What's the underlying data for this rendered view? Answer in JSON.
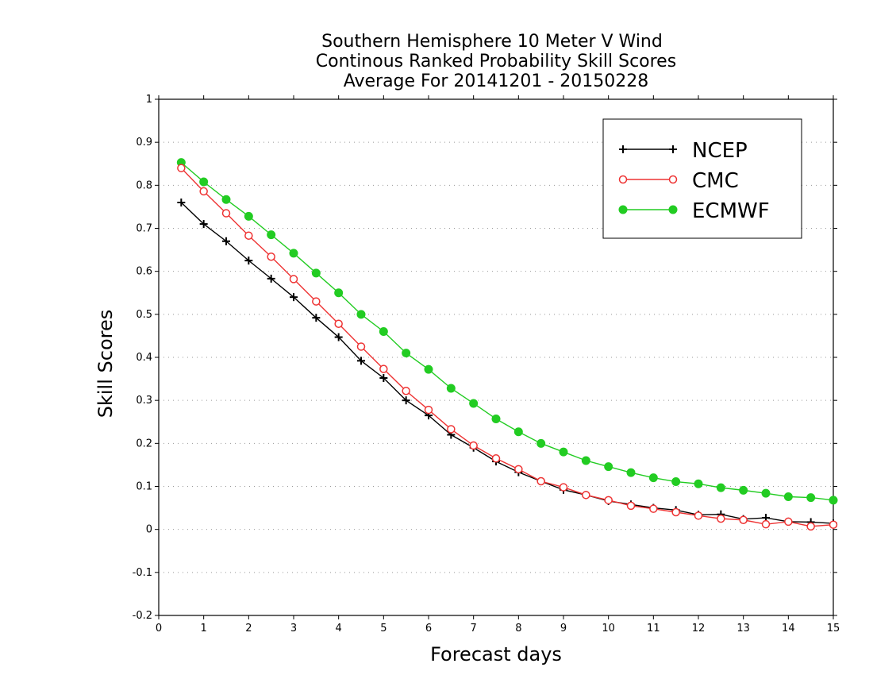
{
  "chart_data": {
    "type": "line",
    "title": [
      "Southern Hemisphere 10 Meter V Wind",
      "Continous Ranked Probability Skill Scores",
      "Average For 20141201 - 20150228"
    ],
    "xlabel": "Forecast days",
    "ylabel": "Skill Scores",
    "xlim": [
      0,
      15
    ],
    "ylim": [
      -0.2,
      1
    ],
    "xticks": [
      0,
      1,
      2,
      3,
      4,
      5,
      6,
      7,
      8,
      9,
      10,
      11,
      12,
      13,
      14,
      15
    ],
    "yticks": [
      -0.2,
      -0.1,
      0,
      0.1,
      0.2,
      0.3,
      0.4,
      0.5,
      0.6,
      0.7,
      0.8,
      0.9,
      1
    ],
    "ytick_labels": [
      "-0.2",
      "-0.1",
      "0",
      "0.1",
      "0.2",
      "0.3",
      "0.4",
      "0.5",
      "0.6",
      "0.7",
      "0.8",
      "0.9",
      "1"
    ],
    "grid": "horizontal dotted",
    "legend_position": "top-right",
    "x": [
      0.5,
      1,
      1.5,
      2,
      2.5,
      3,
      3.5,
      4,
      4.5,
      5,
      5.5,
      6,
      6.5,
      7,
      7.5,
      8,
      8.5,
      9,
      9.5,
      10,
      10.5,
      11,
      11.5,
      12,
      12.5,
      13,
      13.5,
      14,
      14.5,
      15
    ],
    "series": [
      {
        "name": "NCEP",
        "color": "#000000",
        "marker": "plus",
        "values": [
          0.76,
          0.71,
          0.67,
          0.625,
          0.583,
          0.54,
          0.492,
          0.447,
          0.392,
          0.352,
          0.3,
          0.265,
          0.22,
          0.19,
          0.158,
          0.133,
          0.112,
          0.092,
          0.08,
          0.066,
          0.058,
          0.05,
          0.045,
          0.034,
          0.035,
          0.024,
          0.027,
          0.018,
          0.017,
          0.014
        ]
      },
      {
        "name": "CMC",
        "color": "#ee3333",
        "marker": "open-circle",
        "values": [
          0.84,
          0.786,
          0.735,
          0.683,
          0.634,
          0.582,
          0.53,
          0.478,
          0.425,
          0.373,
          0.322,
          0.278,
          0.233,
          0.195,
          0.165,
          0.14,
          0.112,
          0.098,
          0.08,
          0.068,
          0.055,
          0.048,
          0.04,
          0.032,
          0.025,
          0.022,
          0.012,
          0.018,
          0.007,
          0.011
        ]
      },
      {
        "name": "ECMWF",
        "color": "#22cc22",
        "marker": "filled-circle",
        "values": [
          0.853,
          0.808,
          0.767,
          0.728,
          0.685,
          0.642,
          0.596,
          0.55,
          0.5,
          0.46,
          0.41,
          0.372,
          0.328,
          0.293,
          0.257,
          0.227,
          0.2,
          0.18,
          0.16,
          0.146,
          0.132,
          0.12,
          0.111,
          0.106,
          0.097,
          0.091,
          0.084,
          0.076,
          0.074,
          0.068
        ]
      }
    ]
  }
}
